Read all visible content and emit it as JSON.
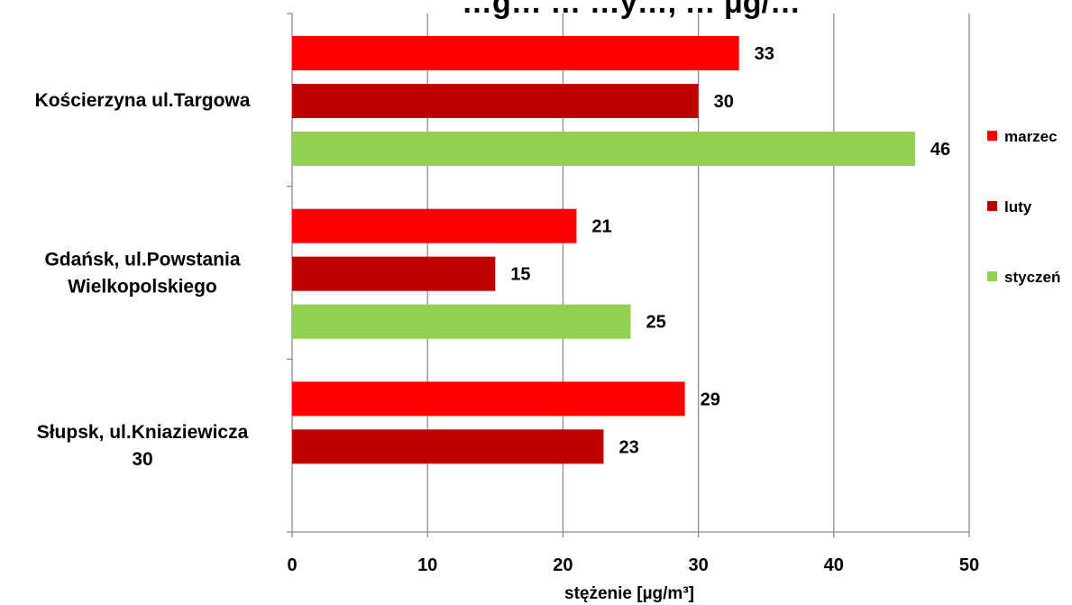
{
  "chart_data": {
    "type": "bar",
    "orientation": "horizontal",
    "title": "…g…  … …y…, … μg/…",
    "categories": [
      [
        "Kościerzyna ul.Targowa"
      ],
      [
        "Gdańsk, ul.Powstania",
        "Wielkopolskiego"
      ],
      [
        "Słupsk, ul.Kniaziewicza",
        "30"
      ]
    ],
    "series": [
      {
        "name": "marzec",
        "color": "#ff0000",
        "values": [
          33,
          21,
          29
        ]
      },
      {
        "name": "luty",
        "color": "#c00000",
        "values": [
          30,
          15,
          23
        ]
      },
      {
        "name": "styczeń",
        "color": "#92d050",
        "values": [
          46,
          25,
          null
        ]
      }
    ],
    "data_labels": [
      [
        "33",
        "21",
        "29"
      ],
      [
        "30",
        "15",
        "23"
      ],
      [
        "46",
        "25",
        ""
      ]
    ],
    "xlabel": "stężenie [µg/m³]",
    "xlim": [
      0,
      50
    ],
    "xticks": [
      0,
      10,
      20,
      30,
      40,
      50
    ],
    "grid": true,
    "legend_position": "right"
  }
}
